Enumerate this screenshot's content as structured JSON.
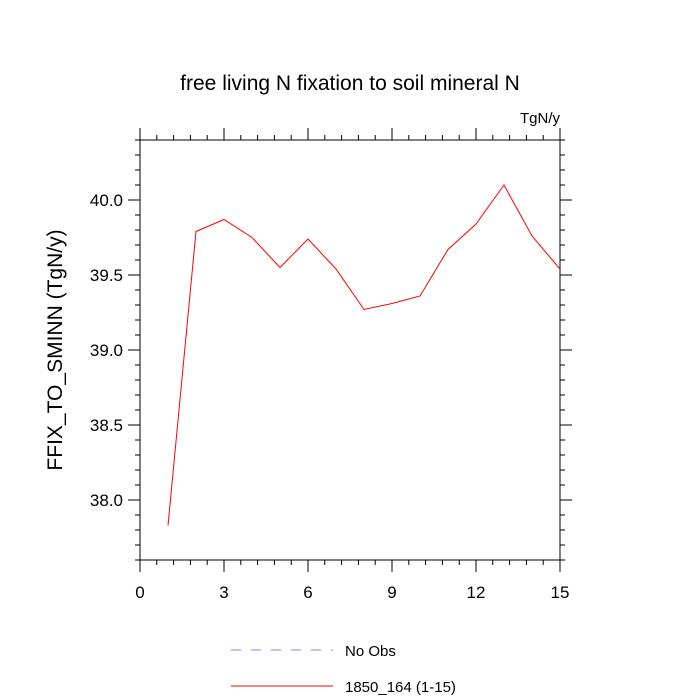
{
  "chart_data": {
    "type": "line",
    "title": "free living N fixation to soil mineral N",
    "units": "TgN/y",
    "xlabel": "",
    "ylabel": "FFIX_TO_SMINN  (TgN/y)",
    "xlim": [
      0,
      15
    ],
    "ylim": [
      37.6,
      40.4
    ],
    "x_ticks": [
      0,
      3,
      6,
      9,
      12,
      15
    ],
    "x_tick_labels": [
      "0",
      "3",
      "6",
      "9",
      "12",
      "15"
    ],
    "y_ticks": [
      38.0,
      38.5,
      39.0,
      39.5,
      40.0
    ],
    "y_tick_labels": [
      "38.0",
      "38.5",
      "39.0",
      "39.5",
      "40.0"
    ],
    "grid": false,
    "legend_position": "bottom",
    "series": [
      {
        "name": "No Obs",
        "color": "#8080ff",
        "dash": true,
        "x": [],
        "values": []
      },
      {
        "name": "1850_164 (1-15)",
        "color": "#ff0000",
        "dash": false,
        "x": [
          1,
          2,
          3,
          4,
          5,
          6,
          7,
          8,
          9,
          10,
          11,
          12,
          13,
          14,
          15
        ],
        "values": [
          37.83,
          39.79,
          39.87,
          39.75,
          39.55,
          39.74,
          39.54,
          39.27,
          39.31,
          39.36,
          39.67,
          39.84,
          40.1,
          39.76,
          39.54
        ]
      }
    ]
  }
}
